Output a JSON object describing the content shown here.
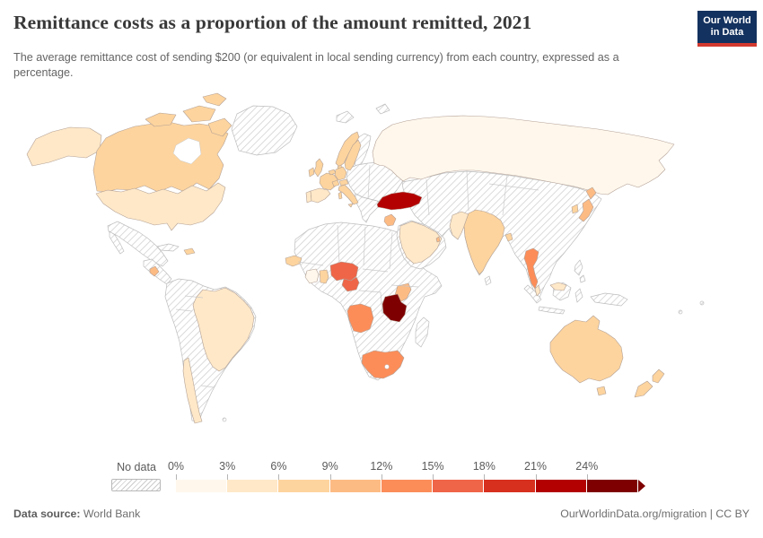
{
  "header": {
    "title": "Remittance costs as a proportion of the amount remitted, 2021",
    "subtitle": "The average remittance cost of sending $200 (or equivalent in local sending currency) from each country, expressed as a percentage.",
    "logo": {
      "line1": "Our World",
      "line2": "in Data"
    }
  },
  "colors": {
    "logo_bg": "#14325f",
    "logo_accent": "#d3392f",
    "title_text": "#383838",
    "subtitle_text": "#646464",
    "footer_text": "#6e6e6e",
    "hatch_line": "#cfcfcf",
    "land_border": "#bdbdbd"
  },
  "legend": {
    "no_data_label": "No data",
    "tick_labels": [
      "0%",
      "3%",
      "6%",
      "9%",
      "12%",
      "15%",
      "18%",
      "21%",
      "24%"
    ],
    "bin_colors": [
      "#fff7ec",
      "#fee8c8",
      "#fdd49e",
      "#fdbb84",
      "#fc8d59",
      "#ef6548",
      "#d7301f",
      "#b30000",
      "#7f0000"
    ]
  },
  "footer": {
    "source_label": "Data source:",
    "source_value": " World Bank",
    "credit": "OurWorldinData.org/migration | CC BY"
  },
  "chart_data": {
    "type": "choropleth_world_map",
    "title": "Remittance costs as a proportion of the amount remitted, 2021",
    "unit": "%",
    "no_data_style": "diagonal-hatch",
    "legend_position": "bottom",
    "bins": {
      "0-3%": "#fff7ec",
      "3-6%": "#fee8c8",
      "6-9%": "#fdd49e",
      "9-12%": "#fdbb84",
      "12-15%": "#fc8d59",
      "15-18%": "#ef6548",
      "18-21%": "#d7301f",
      "21-24%": "#b30000",
      ">24%": "#7f0000"
    },
    "countries": [
      {
        "name": "United States",
        "bin": "3-6%"
      },
      {
        "name": "Canada",
        "bin": "6-9%"
      },
      {
        "name": "Costa Rica",
        "bin": "9-12%"
      },
      {
        "name": "Dominican Republic",
        "bin": "6-9%"
      },
      {
        "name": "Brazil",
        "bin": "3-6%"
      },
      {
        "name": "Chile",
        "bin": "3-6%"
      },
      {
        "name": "United Kingdom",
        "bin": "6-9%"
      },
      {
        "name": "Ireland",
        "bin": "6-9%"
      },
      {
        "name": "Portugal",
        "bin": "3-6%"
      },
      {
        "name": "Spain",
        "bin": "3-6%"
      },
      {
        "name": "France",
        "bin": "6-9%"
      },
      {
        "name": "Belgium-Netherlands",
        "bin": "6-9%"
      },
      {
        "name": "Germany",
        "bin": "6-9%"
      },
      {
        "name": "Switzerland",
        "bin": "6-9%"
      },
      {
        "name": "Austria",
        "bin": "6-9%"
      },
      {
        "name": "Italy",
        "bin": "6-9%"
      },
      {
        "name": "Denmark",
        "bin": "6-9%"
      },
      {
        "name": "Norway",
        "bin": "6-9%"
      },
      {
        "name": "Sweden",
        "bin": "6-9%"
      },
      {
        "name": "Russia",
        "bin": "0-3%"
      },
      {
        "name": "Turkey",
        "bin": "21-24%"
      },
      {
        "name": "Israel-Jordan",
        "bin": "9-12%"
      },
      {
        "name": "Saudi Arabia",
        "bin": "3-6%"
      },
      {
        "name": "Qatar",
        "bin": "9-12%"
      },
      {
        "name": "Pakistan",
        "bin": "3-6%"
      },
      {
        "name": "India",
        "bin": "6-9%"
      },
      {
        "name": "Bangladesh",
        "bin": "6-9%"
      },
      {
        "name": "Thailand",
        "bin": "12-15%"
      },
      {
        "name": "Malaysia",
        "bin": "3-6%"
      },
      {
        "name": "Japan",
        "bin": "9-12%"
      },
      {
        "name": "South Korea",
        "bin": "6-9%"
      },
      {
        "name": "Senegal",
        "bin": "6-9%"
      },
      {
        "name": "Cote d'Ivoire",
        "bin": "0-3%"
      },
      {
        "name": "Ghana",
        "bin": "6-9%"
      },
      {
        "name": "Nigeria",
        "bin": "15-18%"
      },
      {
        "name": "Cameroon",
        "bin": "15-18%"
      },
      {
        "name": "Kenya",
        "bin": "9-12%"
      },
      {
        "name": "Tanzania",
        "bin": ">24%"
      },
      {
        "name": "Angola",
        "bin": "12-15%"
      },
      {
        "name": "South Africa",
        "bin": "12-15%"
      },
      {
        "name": "Australia",
        "bin": "6-9%"
      },
      {
        "name": "New Zealand",
        "bin": "6-9%"
      }
    ]
  }
}
